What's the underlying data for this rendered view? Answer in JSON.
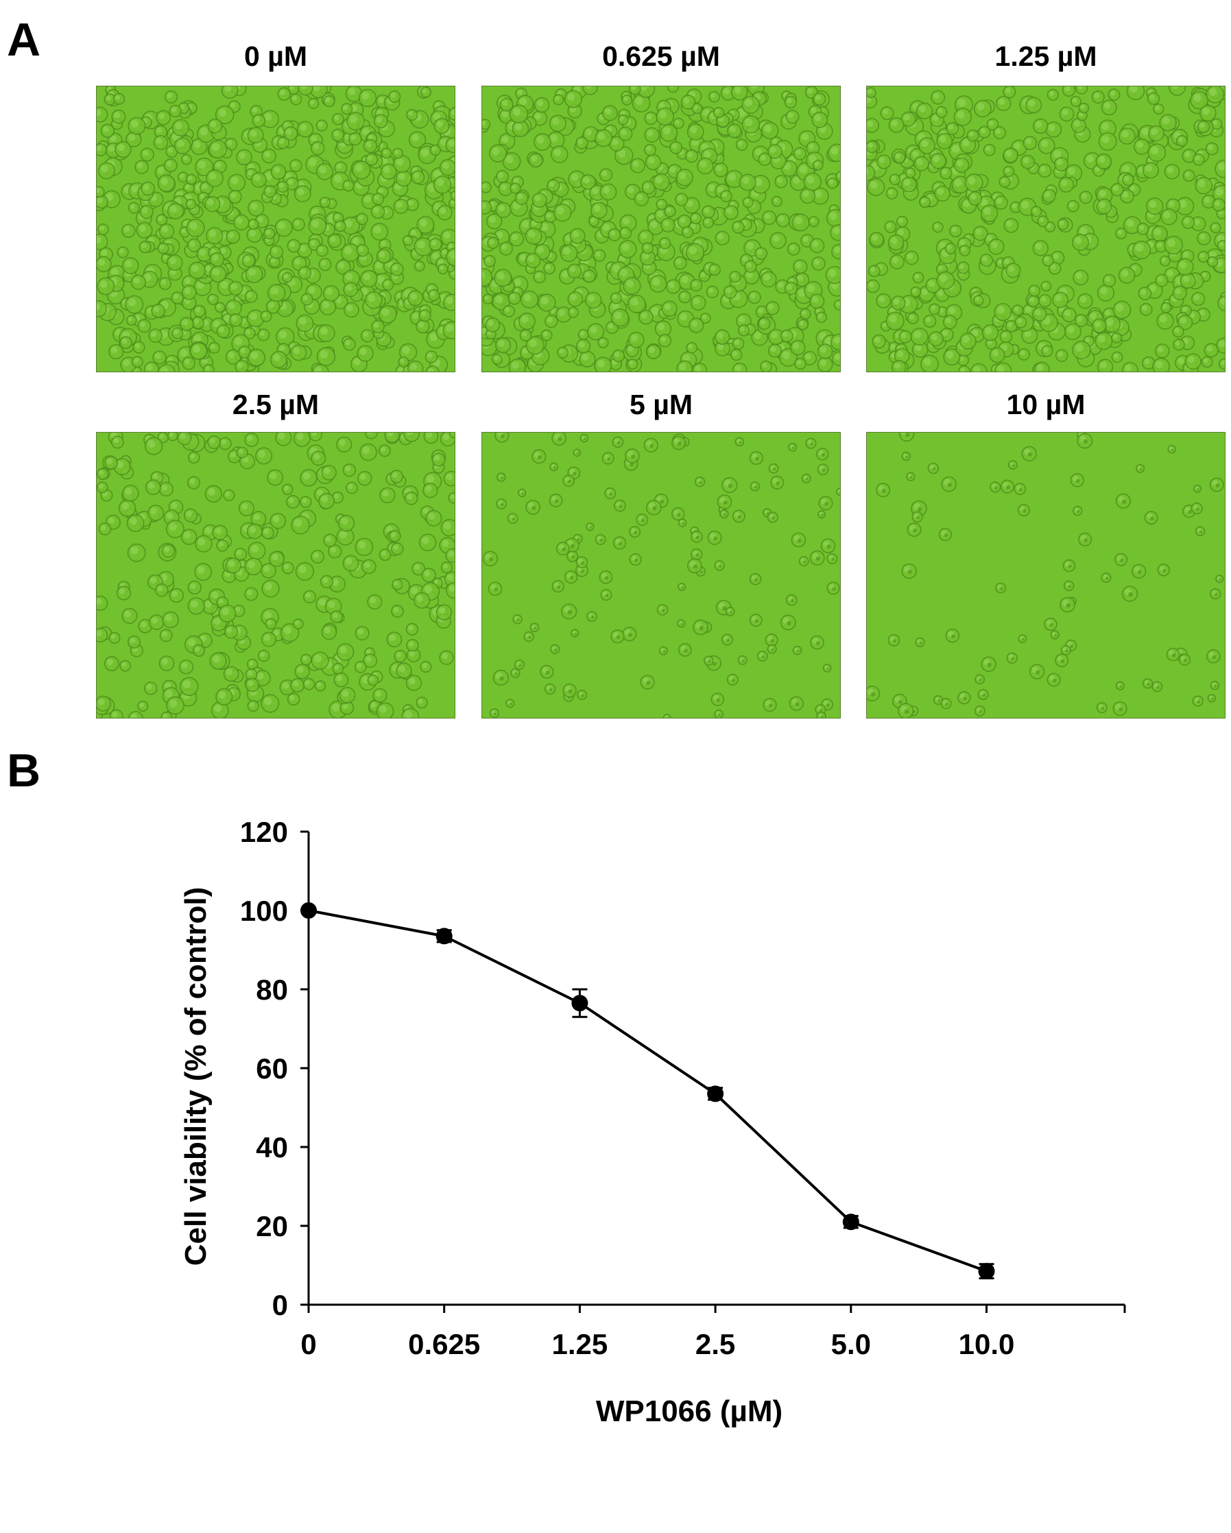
{
  "panel_a": {
    "letter": "A",
    "images": [
      {
        "label": "0 µM",
        "density": 1.0
      },
      {
        "label": "0.625 µM",
        "density": 0.93
      },
      {
        "label": "1.25 µM",
        "density": 0.8
      },
      {
        "label": "2.5 µM",
        "density": 0.55
      },
      {
        "label": "5 µM",
        "density": 0.24
      },
      {
        "label": "10 µM",
        "density": 0.14
      }
    ],
    "colors": {
      "field": "#72c12e",
      "cell_edge": "#4e8f1c",
      "cell_light": "#9ad860"
    }
  },
  "panel_b": {
    "letter": "B"
  },
  "chart_data": {
    "type": "line",
    "categories": [
      "0",
      "0.625",
      "1.25",
      "2.5",
      "5.0",
      "10.0"
    ],
    "values": [
      100,
      93.5,
      76.5,
      53.5,
      21,
      8.5
    ],
    "errors": [
      0,
      1.5,
      3.5,
      1.5,
      1.5,
      1.8
    ],
    "ylim": [
      0,
      120
    ],
    "yticks": [
      "0",
      "20",
      "40",
      "60",
      "80",
      "100",
      "120"
    ],
    "xlabel": "WP1066 (µM)",
    "ylabel": "Cell viability (% of control)",
    "grid": false,
    "color": "#000000"
  }
}
